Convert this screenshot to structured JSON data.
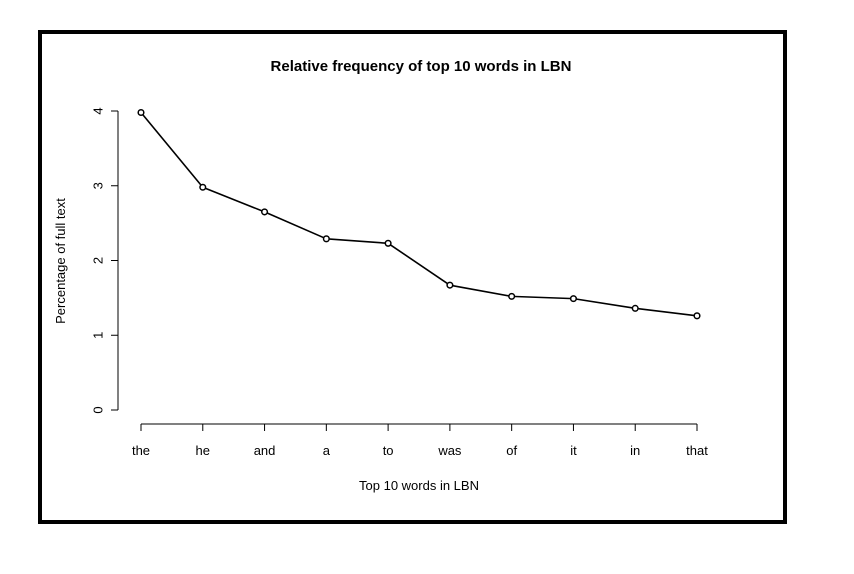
{
  "chart_data": {
    "type": "line",
    "title": "Relative frequency of top 10 words in LBN",
    "xlabel": "Top 10 words in LBN",
    "ylabel": "Percentage of full text",
    "categories": [
      "the",
      "he",
      "and",
      "a",
      "to",
      "was",
      "of",
      "it",
      "in",
      "that"
    ],
    "values": [
      3.98,
      2.98,
      2.65,
      2.29,
      2.23,
      1.67,
      1.52,
      1.49,
      1.36,
      1.26
    ],
    "yticks": [
      "0",
      "1",
      "2",
      "3",
      "4"
    ],
    "ylim": [
      0,
      4
    ],
    "grid": false,
    "marker": "open-circle",
    "line_color": "#000000"
  }
}
